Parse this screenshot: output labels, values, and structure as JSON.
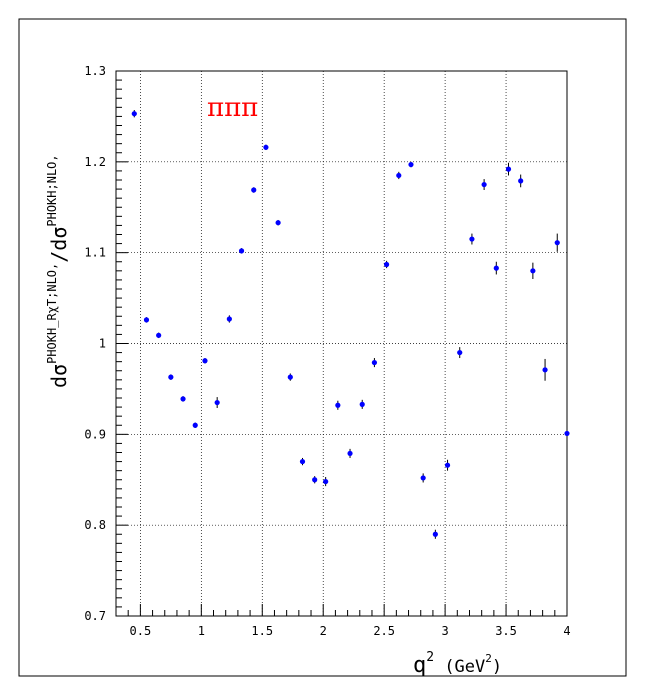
{
  "chart_data": {
    "type": "scatter",
    "annotation": "πππ",
    "xlabel": {
      "base": "q",
      "sup": "2",
      "mid": " (GeV",
      "sup2": "2",
      "end": ")"
    },
    "ylabel": {
      "p1": "dσ",
      "sup1": "PHOKH_RχT;NLO,",
      "p2": "/dσ",
      "sup2": "PHOKH;NLO,"
    },
    "xlim": [
      0.3,
      4.0
    ],
    "ylim": [
      0.7,
      1.3
    ],
    "x_ticks": [
      0.5,
      1,
      1.5,
      2,
      2.5,
      3,
      3.5,
      4
    ],
    "x_tick_labels": [
      "0.5",
      "1",
      "1.5",
      "2",
      "2.5",
      "3",
      "3.5",
      "4"
    ],
    "y_ticks": [
      0.7,
      0.8,
      0.9,
      1.0,
      1.1,
      1.2,
      1.3
    ],
    "y_tick_labels": [
      "0.7",
      "0.8",
      "0.9",
      "1",
      "1.1",
      "1.2",
      "1.3"
    ],
    "grid": true,
    "marker_color": "#0000ff",
    "points": [
      {
        "x": 0.45,
        "y": 1.253,
        "err": 0.004
      },
      {
        "x": 0.55,
        "y": 1.026,
        "err": 0.003
      },
      {
        "x": 0.65,
        "y": 1.009,
        "err": 0.003
      },
      {
        "x": 0.75,
        "y": 0.963,
        "err": 0.003
      },
      {
        "x": 0.85,
        "y": 0.939,
        "err": 0.003
      },
      {
        "x": 0.95,
        "y": 0.91,
        "err": 0.003
      },
      {
        "x": 1.03,
        "y": 0.981,
        "err": 0.003
      },
      {
        "x": 1.13,
        "y": 0.935,
        "err": 0.006
      },
      {
        "x": 1.23,
        "y": 1.027,
        "err": 0.004
      },
      {
        "x": 1.33,
        "y": 1.102,
        "err": 0.003
      },
      {
        "x": 1.43,
        "y": 1.169,
        "err": 0.003
      },
      {
        "x": 1.53,
        "y": 1.216,
        "err": 0.003
      },
      {
        "x": 1.63,
        "y": 1.133,
        "err": 0.003
      },
      {
        "x": 1.73,
        "y": 0.963,
        "err": 0.004
      },
      {
        "x": 1.83,
        "y": 0.87,
        "err": 0.004
      },
      {
        "x": 1.93,
        "y": 0.85,
        "err": 0.004
      },
      {
        "x": 2.02,
        "y": 0.848,
        "err": 0.005
      },
      {
        "x": 2.12,
        "y": 0.932,
        "err": 0.005
      },
      {
        "x": 2.22,
        "y": 0.879,
        "err": 0.005
      },
      {
        "x": 2.32,
        "y": 0.933,
        "err": 0.005
      },
      {
        "x": 2.42,
        "y": 0.979,
        "err": 0.005
      },
      {
        "x": 2.52,
        "y": 1.087,
        "err": 0.004
      },
      {
        "x": 2.62,
        "y": 1.185,
        "err": 0.004
      },
      {
        "x": 2.72,
        "y": 1.197,
        "err": 0.003
      },
      {
        "x": 2.82,
        "y": 0.852,
        "err": 0.005
      },
      {
        "x": 2.92,
        "y": 0.79,
        "err": 0.005
      },
      {
        "x": 3.02,
        "y": 0.866,
        "err": 0.006
      },
      {
        "x": 3.12,
        "y": 0.99,
        "err": 0.006
      },
      {
        "x": 3.22,
        "y": 1.115,
        "err": 0.006
      },
      {
        "x": 3.32,
        "y": 1.175,
        "err": 0.006
      },
      {
        "x": 3.42,
        "y": 1.083,
        "err": 0.007
      },
      {
        "x": 3.52,
        "y": 1.192,
        "err": 0.007
      },
      {
        "x": 3.62,
        "y": 1.179,
        "err": 0.007
      },
      {
        "x": 3.72,
        "y": 1.08,
        "err": 0.009
      },
      {
        "x": 3.82,
        "y": 0.971,
        "err": 0.012
      },
      {
        "x": 3.92,
        "y": 1.111,
        "err": 0.01
      },
      {
        "x": 4.0,
        "y": 0.901,
        "err": 0.016
      }
    ]
  }
}
